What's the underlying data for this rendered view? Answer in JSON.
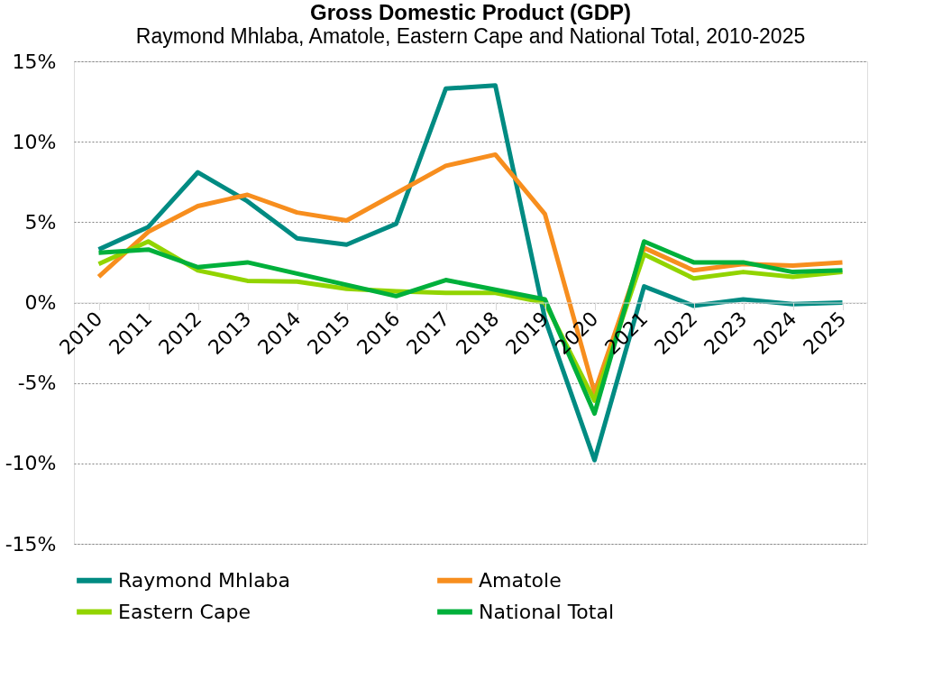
{
  "chart_data": {
    "type": "line",
    "title": "Gross Domestic Product (GDP)",
    "subtitle": "Raymond Mhlaba, Amatole, Eastern Cape and National Total, 2010-2025",
    "categories": [
      "2010",
      "2011",
      "2012",
      "2013",
      "2014",
      "2015",
      "2016",
      "2017",
      "2018",
      "2019",
      "2020",
      "2021",
      "2022",
      "2023",
      "2024",
      "2025"
    ],
    "series": [
      {
        "name": "Raymond Mhlaba",
        "color": "#008b82",
        "values": [
          3.3,
          4.7,
          8.1,
          6.3,
          4.0,
          3.6,
          4.9,
          13.3,
          13.5,
          -1.0,
          -9.8,
          1.0,
          -0.2,
          0.2,
          -0.1,
          0.0
        ]
      },
      {
        "name": "Amatole",
        "color": "#f78e1e",
        "values": [
          1.6,
          4.4,
          6.0,
          6.7,
          5.6,
          5.1,
          6.8,
          8.5,
          9.2,
          5.5,
          -5.6,
          3.4,
          2.0,
          2.4,
          2.3,
          2.5
        ]
      },
      {
        "name": "Eastern Cape",
        "color": "#92d400",
        "values": [
          2.4,
          3.8,
          2.0,
          1.35,
          1.3,
          0.85,
          0.7,
          0.6,
          0.6,
          0.0,
          -6.1,
          3.0,
          1.5,
          1.9,
          1.6,
          1.9
        ]
      },
      {
        "name": "National Total",
        "color": "#00b03b",
        "values": [
          3.1,
          3.3,
          2.2,
          2.5,
          1.8,
          1.1,
          0.4,
          1.4,
          0.8,
          0.2,
          -6.9,
          3.8,
          2.5,
          2.5,
          1.9,
          2.0
        ]
      }
    ],
    "ylim": [
      -15,
      15
    ],
    "yticks": [
      {
        "value": -15,
        "label": "-15%"
      },
      {
        "value": -10,
        "label": "-10%"
      },
      {
        "value": -5,
        "label": "-5%"
      },
      {
        "value": 0,
        "label": "0%"
      },
      {
        "value": 5,
        "label": "5%"
      },
      {
        "value": 10,
        "label": "10%"
      },
      {
        "value": 15,
        "label": "15%"
      }
    ],
    "grid": "y",
    "legend": "bottom",
    "marker": "none",
    "line_style": "solid"
  }
}
